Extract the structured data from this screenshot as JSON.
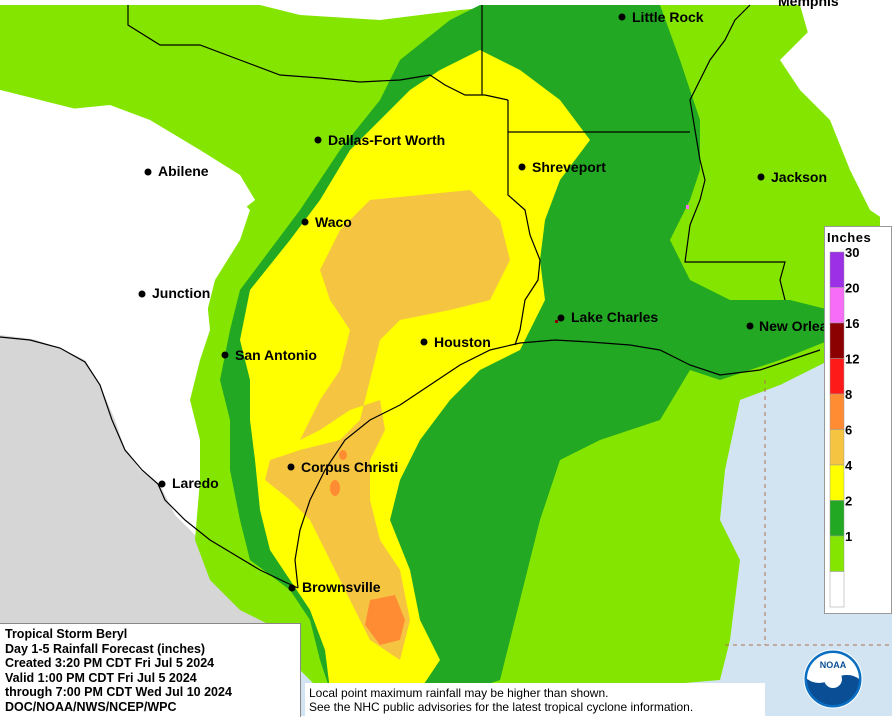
{
  "map": {
    "cities": [
      {
        "name": "Little Rock"
      },
      {
        "name": "Dallas-Fort Worth"
      },
      {
        "name": "Shreveport"
      },
      {
        "name": "Abilene"
      },
      {
        "name": "Jackson"
      },
      {
        "name": "Waco"
      },
      {
        "name": "Junction"
      },
      {
        "name": "Lake Charles"
      },
      {
        "name": "Houston"
      },
      {
        "name": "New Orleans"
      },
      {
        "name": "San Antonio"
      },
      {
        "name": "Corpus Christi"
      },
      {
        "name": "Laredo"
      },
      {
        "name": "Brownsville"
      },
      {
        "name": "Memphis"
      }
    ]
  },
  "legend": {
    "title": "Inches",
    "levels": [
      {
        "label": "30",
        "color": "#9b30e6"
      },
      {
        "label": "20",
        "color": "#f76df7"
      },
      {
        "label": "16",
        "color": "#8b0000"
      },
      {
        "label": "12",
        "color": "#ff1a1a"
      },
      {
        "label": "8",
        "color": "#ff8c33"
      },
      {
        "label": "6",
        "color": "#f5c542"
      },
      {
        "label": "4",
        "color": "#ffff00"
      },
      {
        "label": "2",
        "color": "#22a822"
      },
      {
        "label": "1",
        "color": "#84e600"
      },
      {
        "label": "",
        "color": "#ffffff"
      }
    ]
  },
  "info": {
    "lines": [
      "Tropical Storm Beryl",
      "Day 1-5 Rainfall Forecast (inches)",
      "Created 3:20 PM CDT Fri Jul 5 2024",
      "Valid 1:00 PM CDT Fri Jul 5 2024",
      "through 7:00 PM CDT Wed Jul 10 2024",
      "DOC/NOAA/NWS/NCEP/WPC"
    ]
  },
  "disclaimer": {
    "lines": [
      "Local point maximum rainfall may be higher than shown.",
      "See the NHC public advisories for the latest tropical cyclone information."
    ]
  },
  "logo": {
    "text": "NOAA"
  },
  "colors": {
    "land_no_rain": "#ffffff",
    "mexico": "#d6d6d6",
    "gulf": "#d2e3f2",
    "light_green": "#84e600",
    "dark_green": "#22a822",
    "yellow": "#ffff00",
    "gold": "#f5c542",
    "orange": "#ff8c33"
  }
}
